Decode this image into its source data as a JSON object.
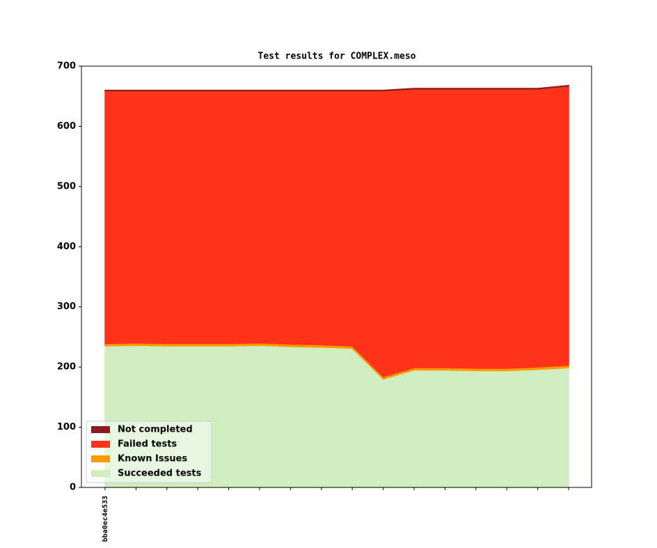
{
  "chart_data": {
    "type": "stacked_area",
    "title": "Test results for COMPLEX.meso",
    "categories": [
      "bba0ec4e533",
      null,
      null,
      null,
      null,
      null,
      null,
      null,
      null,
      null,
      null,
      null,
      null,
      null,
      null,
      null
    ],
    "series": [
      {
        "name": "Not completed",
        "color": "#8e1b1b",
        "values": [
          1,
          1,
          1,
          1,
          1,
          1,
          1,
          1,
          1,
          1,
          1,
          1,
          1,
          1,
          1,
          1
        ]
      },
      {
        "name": "Failed tests",
        "color": "#ff3319",
        "values": [
          420,
          419,
          420,
          420,
          420,
          419,
          421,
          422,
          424,
          475,
          463,
          463,
          464,
          464,
          462,
          464
        ]
      },
      {
        "name": "Known Issues",
        "color": "#ff9a00",
        "values": [
          4,
          4,
          4,
          4,
          4,
          4,
          4,
          4,
          4,
          4,
          4,
          4,
          4,
          4,
          4,
          4
        ]
      },
      {
        "name": "Succeeded tests",
        "color": "#cfedbf",
        "values": [
          235,
          236,
          235,
          235,
          235,
          236,
          234,
          233,
          231,
          180,
          195,
          195,
          194,
          194,
          196,
          199
        ]
      }
    ],
    "ylim": [
      0,
      700
    ],
    "yticks": [
      0,
      100,
      200,
      300,
      400,
      500,
      600,
      700
    ],
    "legend": "lower left"
  }
}
